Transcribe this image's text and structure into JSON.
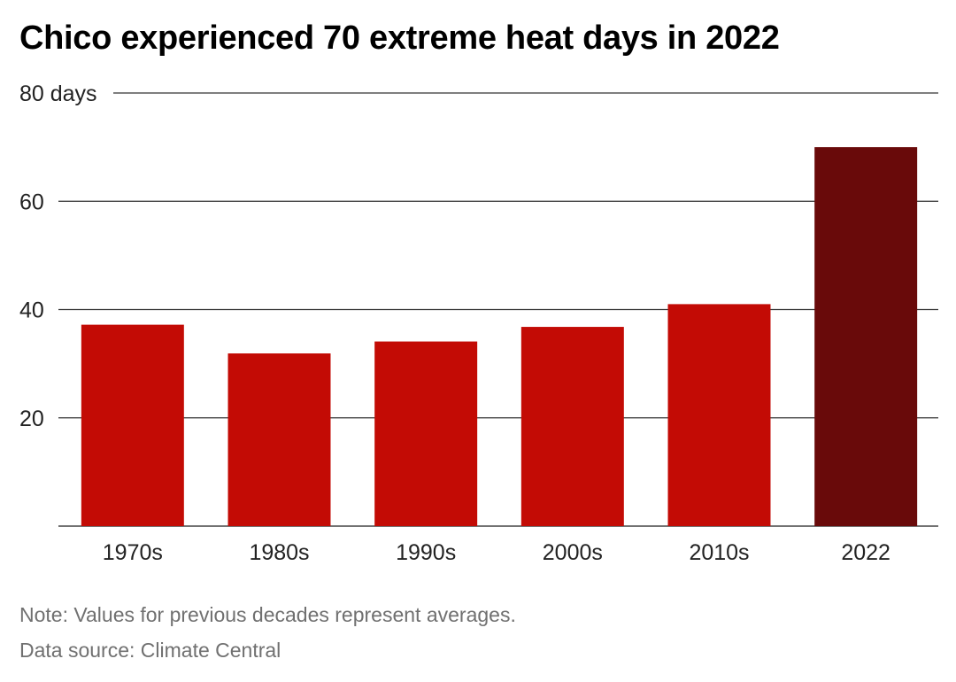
{
  "title": "Chico experienced 70 extreme heat days in 2022",
  "note": "Note: Values for previous decades represent averages.",
  "source": "Data source: Climate Central",
  "colors": {
    "bar_default": "#c30b05",
    "bar_highlight": "#690a0a",
    "gridline": "#333333",
    "axis_text": "#222222"
  },
  "chart_data": {
    "type": "bar",
    "categories": [
      "1970s",
      "1980s",
      "1990s",
      "2000s",
      "2010s",
      "2022"
    ],
    "values": [
      37.2,
      31.9,
      34.1,
      36.8,
      41,
      70
    ],
    "highlight": "2022",
    "ylabel": "",
    "ylim": [
      0,
      80
    ],
    "yticks": [
      20,
      40,
      60,
      80
    ],
    "ytick_labels": [
      "20",
      "40",
      "60",
      "80 days"
    ],
    "grid": true,
    "legend": "none"
  }
}
